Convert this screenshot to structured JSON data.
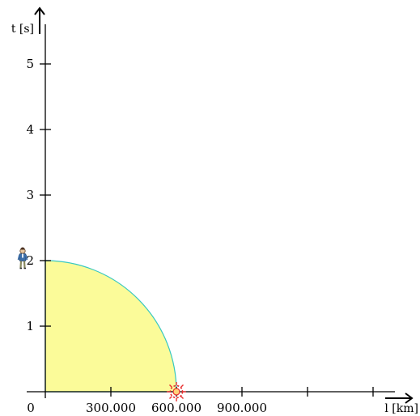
{
  "chart_data": {
    "type": "area",
    "xlabel": "l [km]",
    "ylabel": "t [s]",
    "origin_label": "0",
    "x_ticks": [
      {
        "value": 0,
        "label": ""
      },
      {
        "value": 300000,
        "label": "300.000"
      },
      {
        "value": 600000,
        "label": "600.000"
      },
      {
        "value": 900000,
        "label": "900.000"
      },
      {
        "value": 1200000,
        "label": ""
      },
      {
        "value": 1500000,
        "label": ""
      }
    ],
    "y_ticks": [
      {
        "value": 1,
        "label": "1"
      },
      {
        "value": 2,
        "label": "2"
      },
      {
        "value": 3,
        "label": "3"
      },
      {
        "value": 4,
        "label": "4"
      },
      {
        "value": 5,
        "label": "5"
      }
    ],
    "xlim": [
      0,
      1600000
    ],
    "ylim": [
      0,
      5.6
    ],
    "region": {
      "shape": "quarter-ellipse",
      "x_radius": 600000,
      "t_radius": 2,
      "fill_color": "#fbfb99",
      "edge_color": "#39c8c0"
    },
    "markers": [
      {
        "name": "observer-icon",
        "x": 0,
        "t": 2
      },
      {
        "name": "event-burst-icon",
        "x": 600000,
        "t": 0
      }
    ],
    "grid": false
  }
}
